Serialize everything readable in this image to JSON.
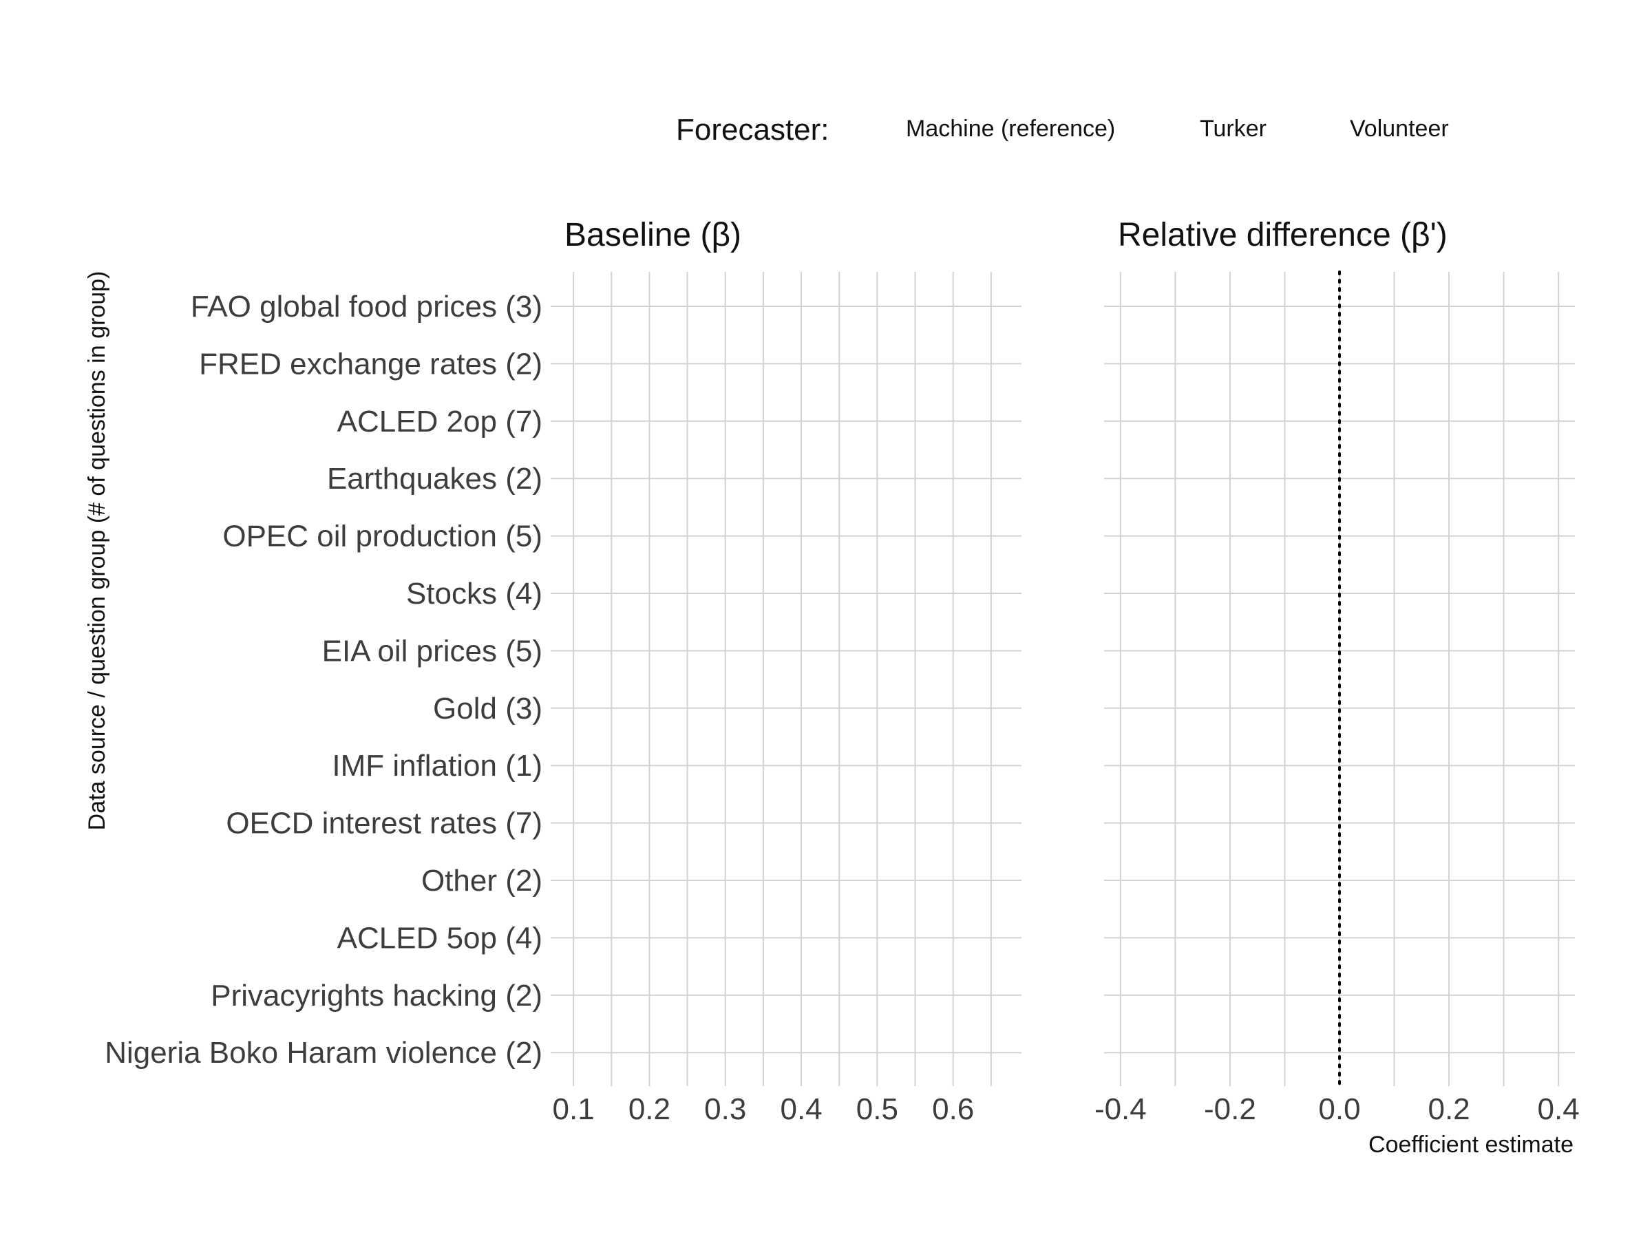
{
  "legend": {
    "title": "Forecaster:",
    "items": [
      "Machine (reference)",
      "Turker",
      "Volunteer"
    ]
  },
  "y_axis_title": "Data source / question group (# of questions in group)",
  "x_axis_title": "Coefficient estimate",
  "chart_data": [
    {
      "type": "scatter",
      "title": "Baseline (β)",
      "categories": [
        "FAO global food prices (3)",
        "FRED exchange rates (2)",
        "ACLED 2op (7)",
        "Earthquakes (2)",
        "OPEC oil production (5)",
        "Stocks (4)",
        "EIA oil prices (5)",
        "Gold (3)",
        "IMF inflation (1)",
        "OECD interest rates (7)",
        "Other (2)",
        "ACLED 5op (4)",
        "Privacyrights hacking (2)",
        "Nigeria Boko Haram violence (2)"
      ],
      "xlim": [
        0.07,
        0.69
      ],
      "xticks": [
        0.1,
        0.2,
        0.3,
        0.4,
        0.5,
        0.6
      ],
      "xtick_labels": [
        "0.1",
        "0.2",
        "0.3",
        "0.4",
        "0.5",
        "0.6"
      ],
      "grid": true,
      "reference_line": null,
      "series": []
    },
    {
      "type": "scatter",
      "title": "Relative difference (β')",
      "categories": [
        "FAO global food prices (3)",
        "FRED exchange rates (2)",
        "ACLED 2op (7)",
        "Earthquakes (2)",
        "OPEC oil production (5)",
        "Stocks (4)",
        "EIA oil prices (5)",
        "Gold (3)",
        "IMF inflation (1)",
        "OECD interest rates (7)",
        "Other (2)",
        "ACLED 5op (4)",
        "Privacyrights hacking (2)",
        "Nigeria Boko Haram violence (2)"
      ],
      "xlim": [
        -0.43,
        0.43
      ],
      "xticks": [
        -0.4,
        -0.2,
        0.0,
        0.2,
        0.4
      ],
      "xtick_labels": [
        "-0.4",
        "-0.2",
        "0.0",
        "0.2",
        "0.4"
      ],
      "grid": true,
      "reference_line": 0.0,
      "series": []
    }
  ]
}
